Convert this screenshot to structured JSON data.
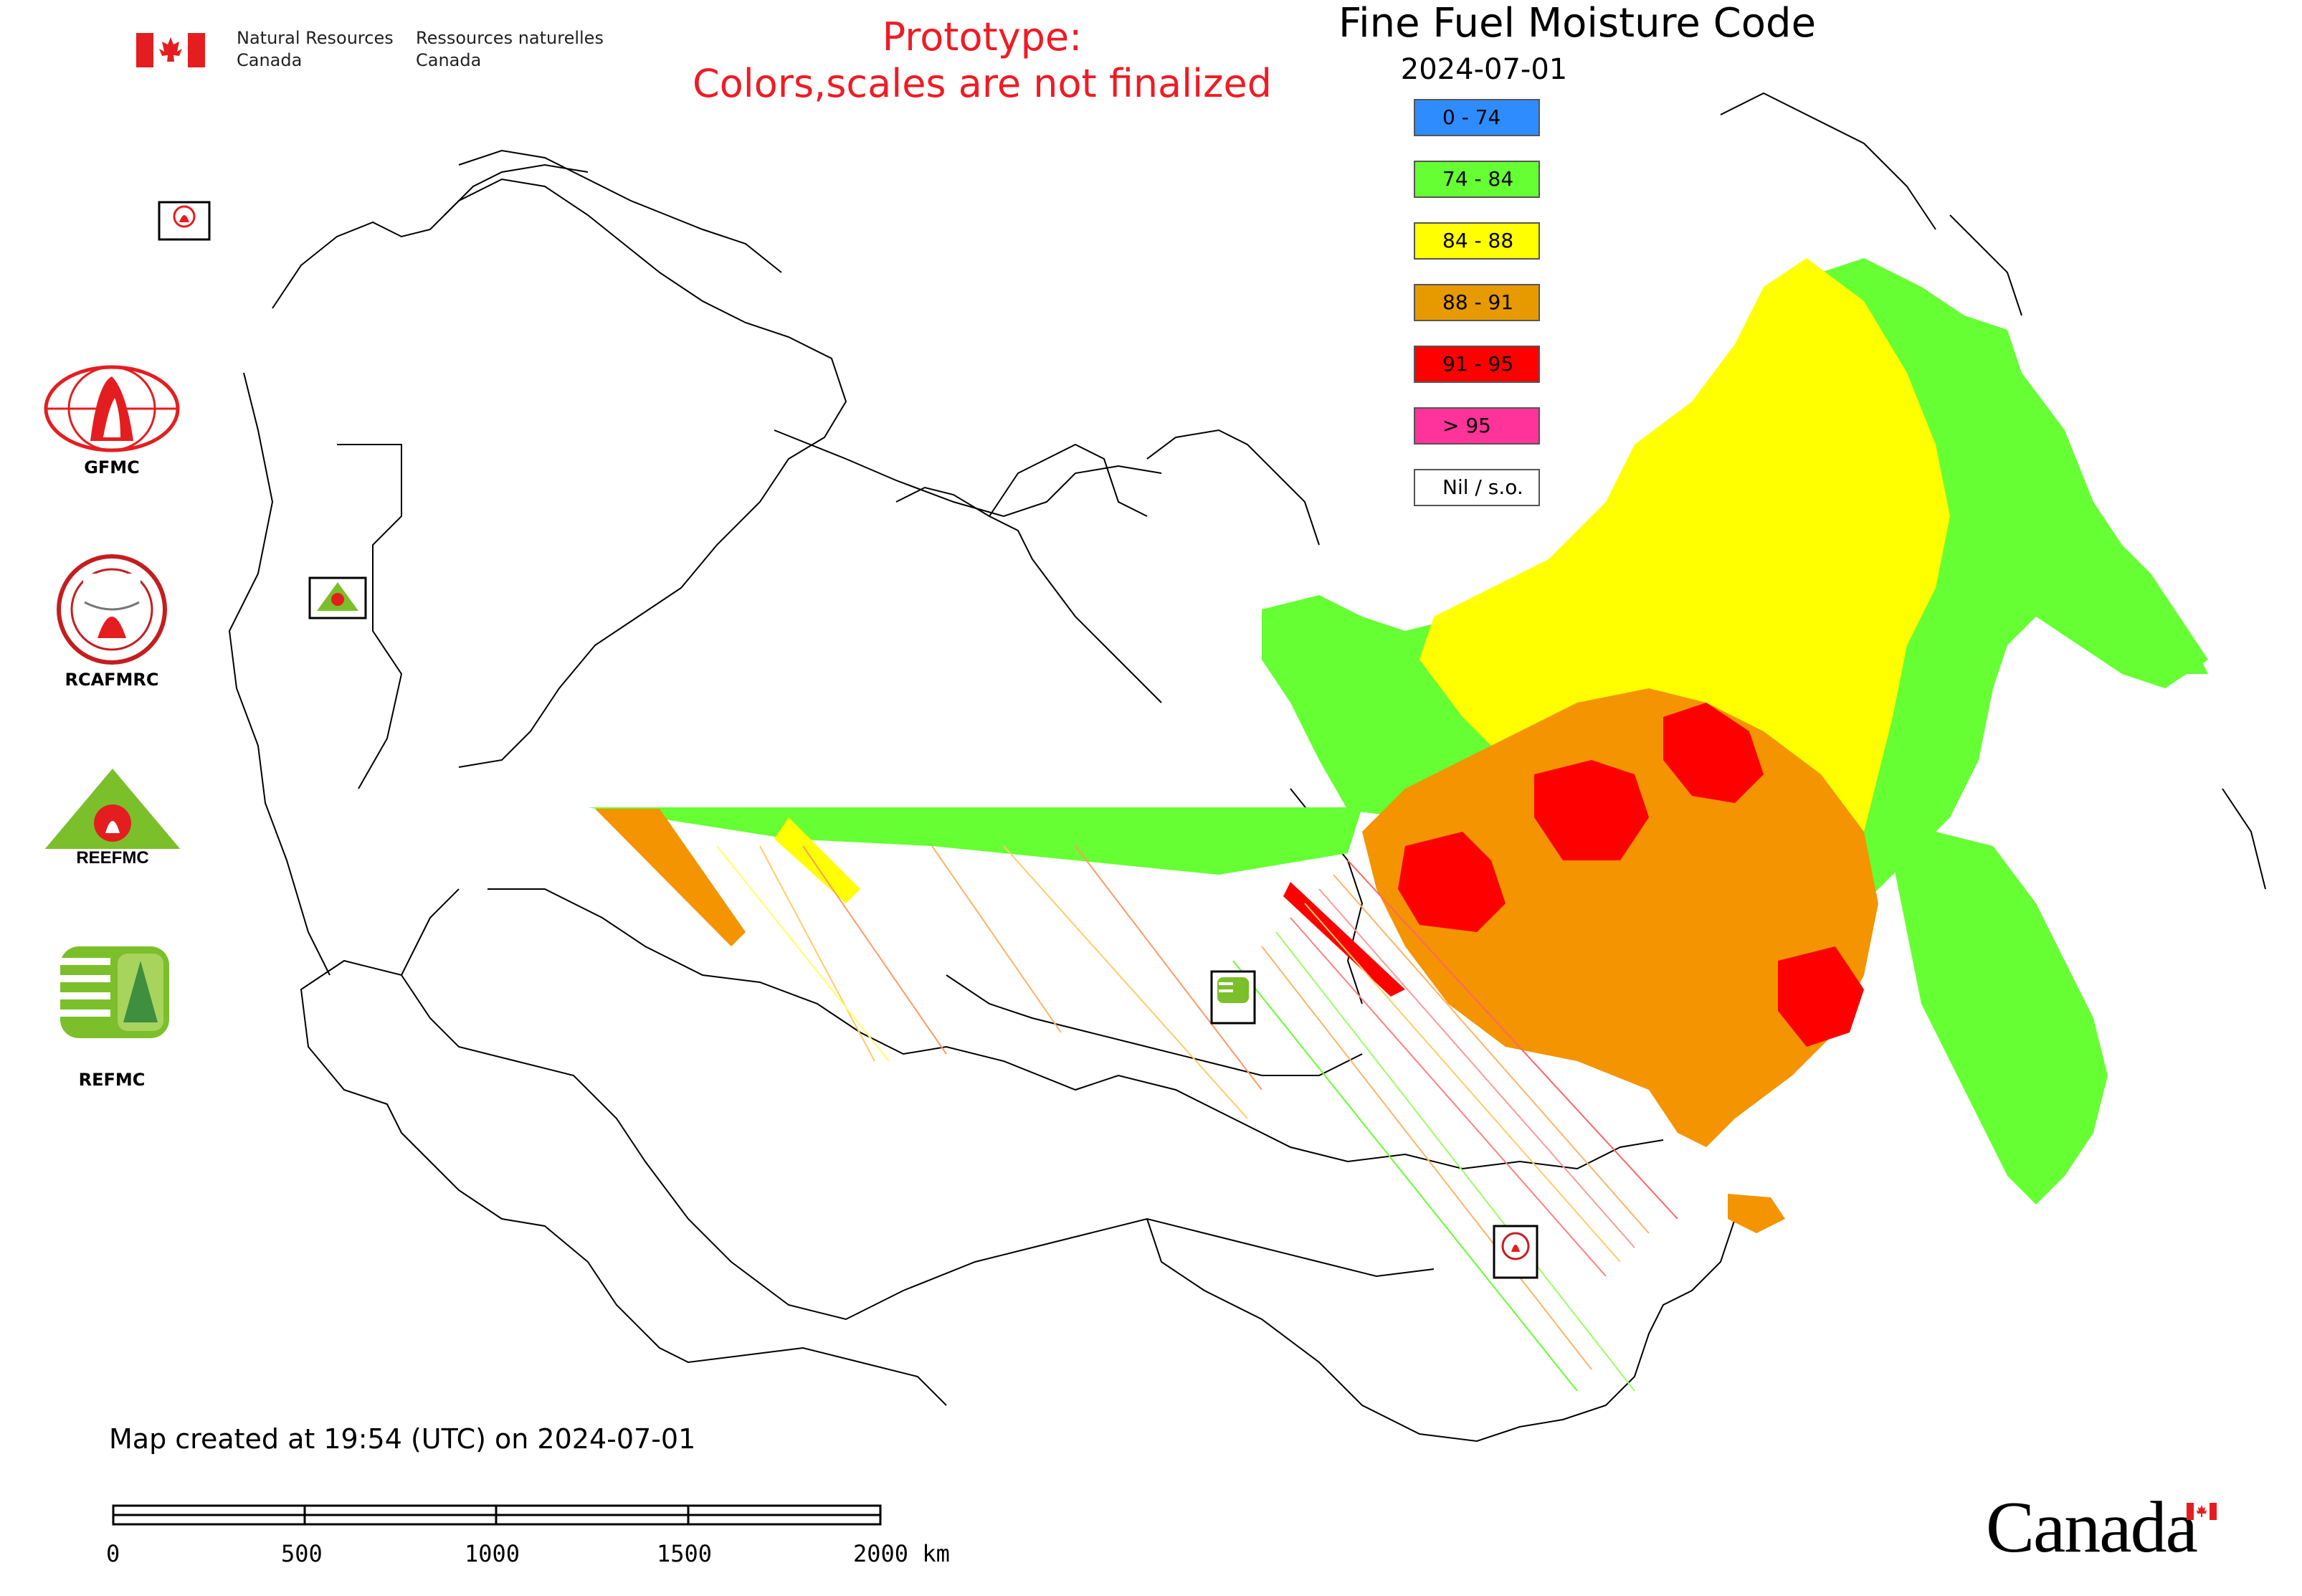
{
  "title": "Fine Fuel Moisture Code",
  "date": "2024-07-01",
  "prototype_notice": {
    "line1": "Prototype:",
    "line2": "Colors,scales are not finalized"
  },
  "agency": {
    "en": "Natural Resources\nCanada",
    "fr": "Ressources naturelles\nCanada"
  },
  "legend": [
    {
      "label": "0 - 74",
      "color": "#2f8cff"
    },
    {
      "label": "74 - 84",
      "color": "#66ff33"
    },
    {
      "label": "84 - 88",
      "color": "#ffff00"
    },
    {
      "label": "88 - 91",
      "color": "#e69a00"
    },
    {
      "label": "91 - 95",
      "color": "#ff0000"
    },
    {
      "label": "> 95",
      "color": "#ff3399"
    },
    {
      "label": "Nil / s.o.",
      "color": "#ffffff"
    }
  ],
  "partner_logos": [
    {
      "label": "GFMC",
      "icon": "gfmc-logo-icon"
    },
    {
      "label": "RCAFMRC",
      "icon": "rcafmrc-logo-icon"
    },
    {
      "label": "REEFMC",
      "icon": "reefmc-logo-icon"
    },
    {
      "label": "REFMC",
      "icon": "refmc-logo-icon"
    }
  ],
  "map_markers": [
    {
      "label": "GFMC",
      "icon": "gfmc-marker-icon"
    },
    {
      "label": "REEFMC",
      "icon": "reefmc-marker-icon"
    },
    {
      "label": "REFMC",
      "icon": "refmc-marker-icon"
    },
    {
      "label": "RCAFMRC",
      "icon": "rcafmrc-marker-icon"
    }
  ],
  "caption": "Map created at 19:54 (UTC) on 2024-07-01",
  "scale_bar": {
    "ticks": [
      "0",
      "500",
      "1000",
      "1500",
      "2000 km"
    ]
  },
  "wordmark": "Canada",
  "colors": {
    "accent_red": "#ee1c25",
    "boundary": "#000000"
  }
}
